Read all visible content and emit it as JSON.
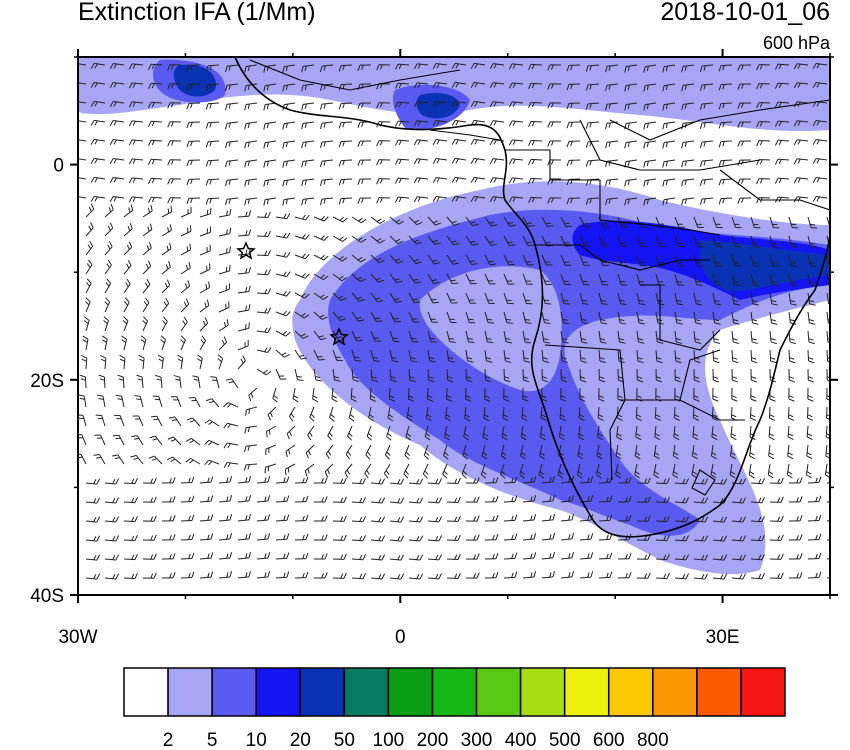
{
  "title": "Extinction IFA (1/Mm)",
  "datetime": "2018-10-01_06",
  "level": "600 hPa",
  "axes": {
    "lon_range": [
      -30,
      40
    ],
    "lat_range": [
      -40,
      10
    ],
    "lon_ticks": [
      {
        "value": -30,
        "label": "30W"
      },
      {
        "value": 0,
        "label": "0"
      },
      {
        "value": 30,
        "label": "30E"
      }
    ],
    "lat_ticks": [
      {
        "value": 0,
        "label": "0"
      },
      {
        "value": -20,
        "label": "20S"
      },
      {
        "value": -40,
        "label": "40S"
      }
    ]
  },
  "colorbar": {
    "colors": [
      "#ffffff",
      "#a6a6f5",
      "#5a5af0",
      "#1414f5",
      "#0a32b4",
      "#087a60",
      "#0a9e14",
      "#14b814",
      "#5ac814",
      "#a8dc14",
      "#ecf00a",
      "#fac800",
      "#fa9600",
      "#fa5a00",
      "#f51414"
    ],
    "labels": [
      "2",
      "5",
      "10",
      "20",
      "50",
      "100",
      "200",
      "300",
      "400",
      "500",
      "600",
      "800"
    ]
  },
  "markers": [
    {
      "lon": -14.3,
      "lat": -8.0,
      "symbol": "star"
    },
    {
      "lon": -5.7,
      "lat": -16.0,
      "symbol": "star"
    }
  ]
}
